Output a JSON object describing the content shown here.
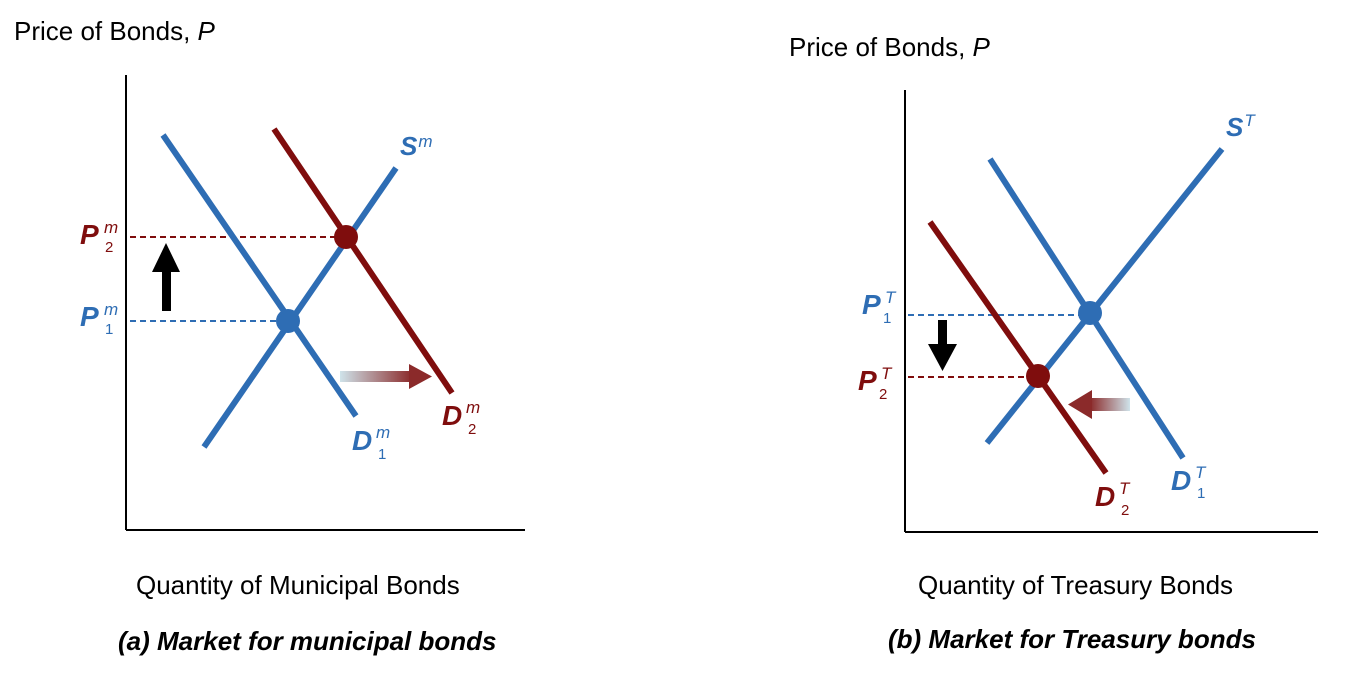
{
  "colors": {
    "blue": "#2e6db4",
    "red": "#7f0d0d",
    "axis": "#000000"
  },
  "panel_a": {
    "y_axis_title_main": "Price of Bonds, ",
    "y_axis_title_var": "P",
    "x_axis_title": "Quantity of Municipal Bonds",
    "caption": "(a) Market for municipal bonds",
    "supply": {
      "main": "S",
      "sup": "m"
    },
    "demand_1": {
      "main": "D",
      "sup": "m",
      "sub": "1"
    },
    "demand_2": {
      "main": "D",
      "sup": "m",
      "sub": "2"
    },
    "price_1": {
      "main": "P",
      "sup": "m",
      "sub": "1"
    },
    "price_2": {
      "main": "P",
      "sup": "m",
      "sub": "2"
    },
    "price_change": "up",
    "demand_shift": "right"
  },
  "panel_b": {
    "y_axis_title_main": "Price of Bonds, ",
    "y_axis_title_var": "P",
    "x_axis_title": "Quantity of Treasury Bonds",
    "caption": "(b) Market for Treasury bonds",
    "supply": {
      "main": "S",
      "sup": "T"
    },
    "demand_1": {
      "main": "D",
      "sup": "T",
      "sub": "1"
    },
    "demand_2": {
      "main": "D",
      "sup": "T",
      "sub": "2"
    },
    "price_1": {
      "main": "P",
      "sup": "T",
      "sub": "1"
    },
    "price_2": {
      "main": "P",
      "sup": "T",
      "sub": "2"
    },
    "price_change": "down",
    "demand_shift": "left"
  }
}
